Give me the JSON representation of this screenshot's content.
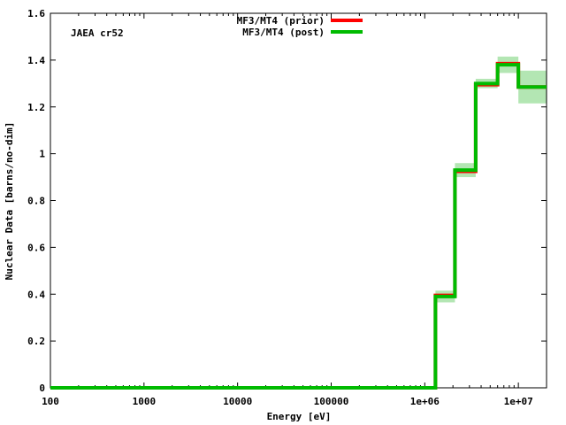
{
  "chart_data": {
    "type": "line",
    "title": "",
    "annotation": "JAEA cr52",
    "xlabel": "Energy [eV]",
    "ylabel": "Nuclear Data [barns/no-dim]",
    "xscale": "log",
    "xlim": [
      100,
      20000000
    ],
    "ylim": [
      0,
      1.6
    ],
    "xticks": [
      100,
      1000,
      10000,
      100000,
      1000000,
      10000000
    ],
    "xtick_labels": [
      "100",
      "1000",
      "10000",
      "100000",
      "1e+06",
      "1e+07"
    ],
    "yticks": [
      0,
      0.2,
      0.4,
      0.6,
      0.8,
      1,
      1.2,
      1.4,
      1.6
    ],
    "ytick_labels": [
      "0",
      "0.2",
      "0.4",
      "0.6",
      "0.8",
      "1",
      "1.2",
      "1.4",
      "1.6"
    ],
    "grid": false,
    "legend_position": "top-center",
    "series": [
      {
        "name": "MF3/MT4 (prior)",
        "color": "#ff0000",
        "step_edges": [
          100,
          1300000,
          2100000,
          3500000,
          6000000,
          10000000,
          20000000
        ],
        "values": [
          0.0,
          0.395,
          0.925,
          1.295,
          1.385,
          1.285
        ]
      },
      {
        "name": "MF3/MT4 (post)",
        "color": "#00bb00",
        "step_edges": [
          100,
          1300000,
          2100000,
          3500000,
          6000000,
          10000000,
          20000000
        ],
        "values": [
          0.0,
          0.39,
          0.93,
          1.3,
          1.38,
          1.285
        ],
        "uncertainty": [
          0.0,
          0.025,
          0.03,
          0.02,
          0.035,
          0.07
        ],
        "band_color": "#b3e6b3"
      }
    ]
  }
}
